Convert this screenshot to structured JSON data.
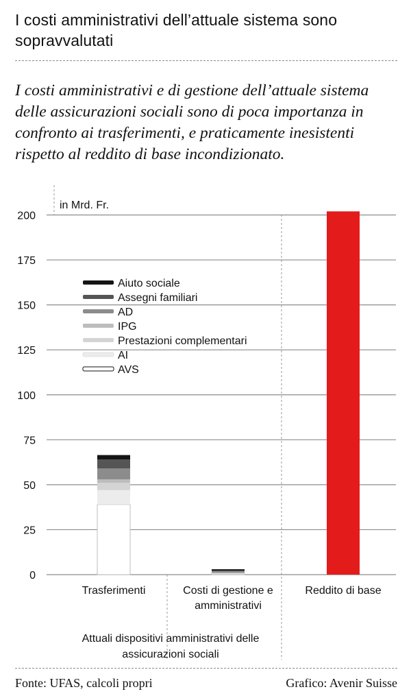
{
  "header": {
    "title": "I costi amministrativi dell’attuale sistema sono sopravvalutati",
    "subtitle": "I costi amministrativi e di gestione dell’attuale sistema delle assicurazioni sociali sono di poca importanza in confronto ai trasferimenti, e praticamente inesistenti rispetto al reddito di base incondizionato."
  },
  "chart_data": {
    "type": "bar",
    "stacked": true,
    "unit_label": "in Mrd. Fr.",
    "ylim": [
      0,
      200
    ],
    "yticks": [
      "0",
      "25",
      "50",
      "75",
      "100",
      "125",
      "150",
      "175",
      "200"
    ],
    "grid": true,
    "legend_position": "top-left",
    "categories": [
      "Trasferimenti",
      "Costi di gestione e amministrativi",
      "Reddito di base"
    ],
    "category_group_label": "Attuali dispositivi amministrativi delle assicurazioni sociali",
    "series": [
      {
        "name": "AVS",
        "color": "#ffffff",
        "values": [
          39,
          0.5,
          0
        ]
      },
      {
        "name": "AI",
        "color": "#ececec",
        "values": [
          8,
          0.3,
          0
        ]
      },
      {
        "name": "Prestazioni complementari",
        "color": "#d4d4d4",
        "values": [
          4,
          0.2,
          0
        ]
      },
      {
        "name": "IPG",
        "color": "#bdbdbd",
        "values": [
          2,
          0.1,
          0
        ]
      },
      {
        "name": "AD",
        "color": "#8c8c8c",
        "values": [
          6,
          0.8,
          0
        ]
      },
      {
        "name": "Assegni familiari",
        "color": "#555555",
        "values": [
          5,
          0.3,
          0
        ]
      },
      {
        "name": "Aiuto sociale",
        "color": "#151515",
        "values": [
          2.5,
          0.8,
          0
        ]
      },
      {
        "name": "Reddito di base",
        "color": "#e41b1b",
        "values": [
          0,
          0,
          202
        ]
      }
    ]
  },
  "footer": {
    "source": "Fonte: UFAS, calcoli propri",
    "credit": "Grafico: Avenir Suisse"
  }
}
